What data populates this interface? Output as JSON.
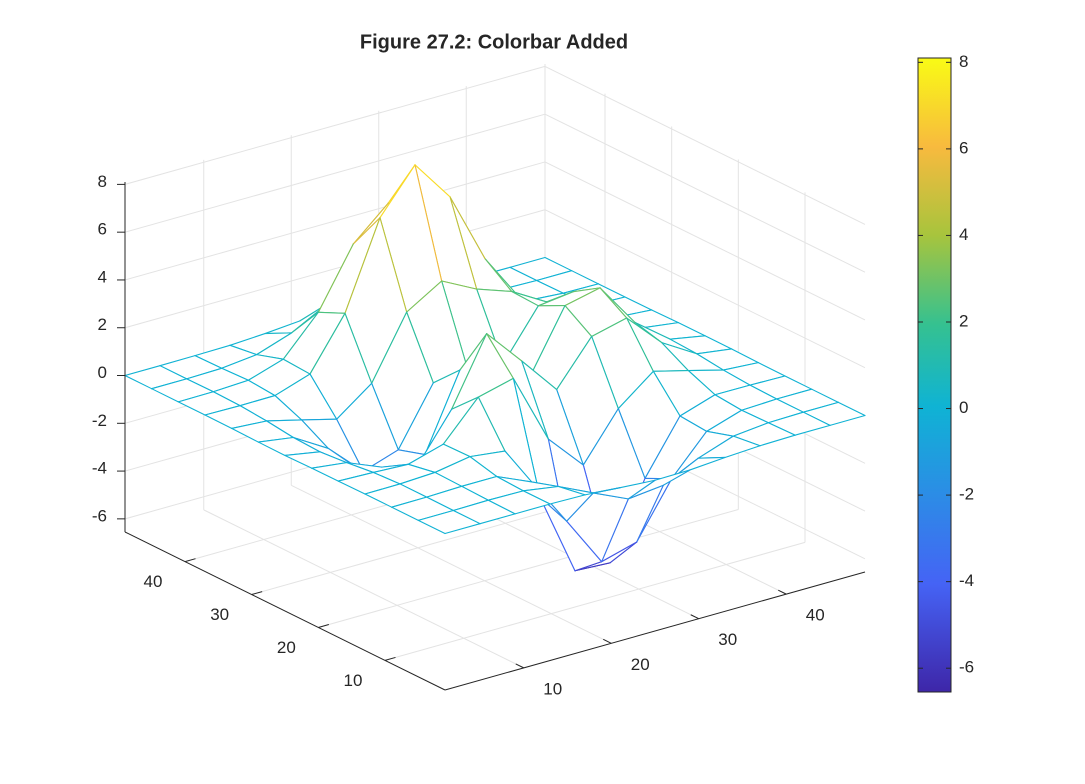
{
  "chart_data": {
    "type": "mesh",
    "title": "Figure 27.2: Colorbar Added",
    "x": [
      1,
      5,
      9,
      13,
      17,
      21,
      25,
      29,
      33,
      37,
      41,
      45,
      49
    ],
    "y": [
      1,
      5,
      9,
      13,
      17,
      21,
      25,
      29,
      33,
      37,
      41,
      45,
      49
    ],
    "z": [
      [
        0,
        0,
        0,
        0,
        -0.03,
        -0.14,
        -0.24,
        -0.22,
        -0.11,
        -0.03,
        0,
        0,
        0
      ],
      [
        0,
        0,
        0.02,
        0,
        -0.23,
        -0.91,
        -1.57,
        -1.41,
        -0.69,
        -0.18,
        -0.03,
        0,
        0
      ],
      [
        0,
        0.01,
        0.05,
        0.05,
        -0.59,
        -2.64,
        -4.75,
        -4.34,
        -2.1,
        -0.53,
        -0.06,
        0,
        0
      ],
      [
        0,
        0.01,
        0.08,
        0.33,
        0.15,
        -2.19,
        -5.68,
        -5.76,
        -2.64,
        -0.44,
        0.04,
        0.03,
        0
      ],
      [
        -0.01,
        -0.06,
        -0.13,
        0.3,
        1.86,
        2.23,
        -0.72,
        -2.22,
        -0.27,
        0.88,
        0.5,
        0.11,
        0.01
      ],
      [
        -0.02,
        -0.2,
        -0.8,
        -1.21,
        0.8,
        3.55,
        2,
        0.39,
        2.2,
        2.56,
        1.12,
        0.24,
        0.03
      ],
      [
        -0.04,
        -0.3,
        -1.33,
        -2.77,
        -1.65,
        1.48,
        0.98,
        0.38,
        2.94,
        3.27,
        1.41,
        0.3,
        0.03
      ],
      [
        -0.03,
        -0.25,
        -1.12,
        -2.49,
        -2,
        0.39,
        0.46,
        0.38,
        2.38,
        2.56,
        1.09,
        0.23,
        0.03
      ],
      [
        -0.01,
        -0.11,
        -0.48,
        -0.86,
        0.23,
        2.8,
        3.69,
        2.94,
        2.43,
        1.58,
        0.58,
        0.12,
        0.01
      ],
      [
        0,
        -0.02,
        -0.01,
        0.48,
        2.61,
        6.2,
        8,
        6.25,
        3.25,
        1.19,
        0.29,
        0.05,
        0
      ],
      [
        0,
        0.01,
        0.08,
        0.55,
        2.1,
        4.55,
        5.85,
        4.56,
        2.21,
        0.68,
        0.13,
        0.02,
        0
      ],
      [
        0,
        0,
        0.03,
        0.19,
        0.69,
        1.47,
        1.89,
        1.47,
        0.7,
        0.2,
        0.04,
        0,
        0
      ],
      [
        0,
        0,
        0.01,
        0.03,
        0.11,
        0.23,
        0.3,
        0.23,
        0.11,
        0.03,
        0.01,
        0,
        0
      ]
    ],
    "xlim": [
      1,
      49
    ],
    "ylim": [
      1,
      49
    ],
    "zlim": [
      -6.55,
      8.1
    ],
    "xticks": [
      10,
      20,
      30,
      40
    ],
    "yticks": [
      10,
      20,
      30,
      40
    ],
    "zticks": [
      -6,
      -4,
      -2,
      0,
      2,
      4,
      6,
      8
    ],
    "grid": true,
    "colormap": "parula",
    "colorbar": {
      "clim": [
        -6.55,
        8.1
      ],
      "ticks": [
        -6,
        -4,
        -2,
        0,
        2,
        4,
        6,
        8
      ]
    }
  }
}
